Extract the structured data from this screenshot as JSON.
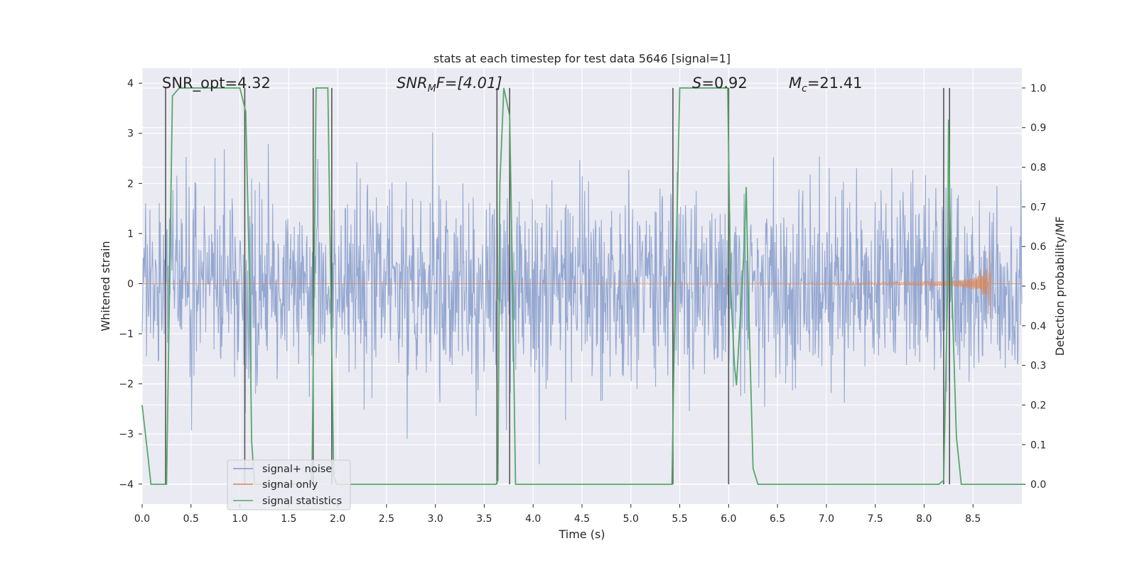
{
  "chart_data": {
    "type": "line",
    "title": "stats at each timestep for test data 5646 [signal=1]",
    "xlabel": "Time (s)",
    "ylabel_left": "Whitened strain",
    "ylabel_right": "Detection probability/MF",
    "xlim": [
      0.0,
      9.0
    ],
    "ylim_left": [
      -4.4,
      4.3
    ],
    "ylim_right": [
      -0.05,
      1.05
    ],
    "x_ticks": [
      "0.0",
      "0.5",
      "1.0",
      "1.5",
      "2.0",
      "2.5",
      "3.0",
      "3.5",
      "4.0",
      "4.5",
      "5.0",
      "5.5",
      "6.0",
      "6.5",
      "7.0",
      "7.5",
      "8.0",
      "8.5"
    ],
    "x_tick_values": [
      0.0,
      0.5,
      1.0,
      1.5,
      2.0,
      2.5,
      3.0,
      3.5,
      4.0,
      4.5,
      5.0,
      5.5,
      6.0,
      6.5,
      7.0,
      7.5,
      8.0,
      8.5
    ],
    "y_left_ticks": [
      "−4",
      "−3",
      "−2",
      "−1",
      "0",
      "1",
      "2",
      "3",
      "4"
    ],
    "y_left_tick_values": [
      -4,
      -3,
      -2,
      -1,
      0,
      1,
      2,
      3,
      4
    ],
    "y_right_ticks": [
      "0.0",
      "0.1",
      "0.2",
      "0.3",
      "0.4",
      "0.5",
      "0.6",
      "0.7",
      "0.8",
      "0.9",
      "1.0"
    ],
    "y_right_tick_values": [
      0.0,
      0.1,
      0.2,
      0.3,
      0.4,
      0.5,
      0.6,
      0.7,
      0.8,
      0.9,
      1.0
    ],
    "annotations": {
      "snr_opt": "SNR_opt=4.32",
      "snr_mf_main": "SNR",
      "snr_mf_sub": "M",
      "snr_mf_rest": "F=[4.01]",
      "s_val_main": "S",
      "s_val_rest": "=0.92",
      "mc_main": "M",
      "mc_sub": "c",
      "mc_rest": "=21.41"
    },
    "legend": {
      "noise": "signal+ noise",
      "signal": "signal only",
      "stats": "signal statistics"
    },
    "colors": {
      "noise": "#7f97c8",
      "signal": "#dd8452",
      "stats": "#55a868",
      "vlines": "#555555",
      "background": "#eaeaf2",
      "grid": "#ffffff"
    },
    "noise_series": {
      "description_free": true,
      "n_points": 1800,
      "sigma": 0.95,
      "seed": 5646
    },
    "signal_series": {
      "chirp_start_s": 4.5,
      "merger_time_s": 8.68,
      "peak_amplitude": 0.95
    },
    "stats_series": {
      "x": [
        0.0,
        0.06,
        0.09,
        0.12,
        0.18,
        0.24,
        0.25,
        0.28,
        0.31,
        0.38,
        0.45,
        0.9,
        1.0,
        1.04,
        1.06,
        1.1,
        1.12,
        1.15,
        1.2,
        1.65,
        1.7,
        1.73,
        1.74,
        1.78,
        1.82,
        1.9,
        1.93,
        1.96,
        1.99,
        2.02,
        2.05,
        2.1,
        3.5,
        3.6,
        3.62,
        3.64,
        3.66,
        3.7,
        3.76,
        3.79,
        3.82,
        5.0,
        5.2,
        5.4,
        5.42,
        5.44,
        5.5,
        5.6,
        5.99,
        6.02,
        6.06,
        6.08,
        6.16,
        6.18,
        6.2,
        6.25,
        6.3,
        6.35,
        6.5,
        7.0,
        8.1,
        8.15,
        8.2,
        8.24,
        8.25,
        8.27,
        8.33,
        8.38,
        8.6,
        9.0
      ],
      "y": [
        0.2,
        0.07,
        0.0,
        0.0,
        0.0,
        0.0,
        0.0,
        0.49,
        0.98,
        1.0,
        1.0,
        1.0,
        1.0,
        0.96,
        0.94,
        0.5,
        0.11,
        0.0,
        0.0,
        0.0,
        0.0,
        0.0,
        0.07,
        1.0,
        1.0,
        1.0,
        0.5,
        0.02,
        0.0,
        0.0,
        0.0,
        0.0,
        0.0,
        0.0,
        0.0,
        0.01,
        0.76,
        1.0,
        0.93,
        0.5,
        0.0,
        0.0,
        0.0,
        0.0,
        0.0,
        0.3,
        1.0,
        1.0,
        1.0,
        0.5,
        0.3,
        0.25,
        0.6,
        0.75,
        0.5,
        0.04,
        0.0,
        0.0,
        0.0,
        0.0,
        0.0,
        0.0,
        0.01,
        0.5,
        0.92,
        0.6,
        0.12,
        0.0,
        0.0,
        0.0
      ]
    },
    "vlines_x": [
      0.24,
      1.05,
      1.75,
      1.94,
      3.63,
      3.76,
      5.43,
      6.0,
      8.2,
      8.26
    ]
  }
}
